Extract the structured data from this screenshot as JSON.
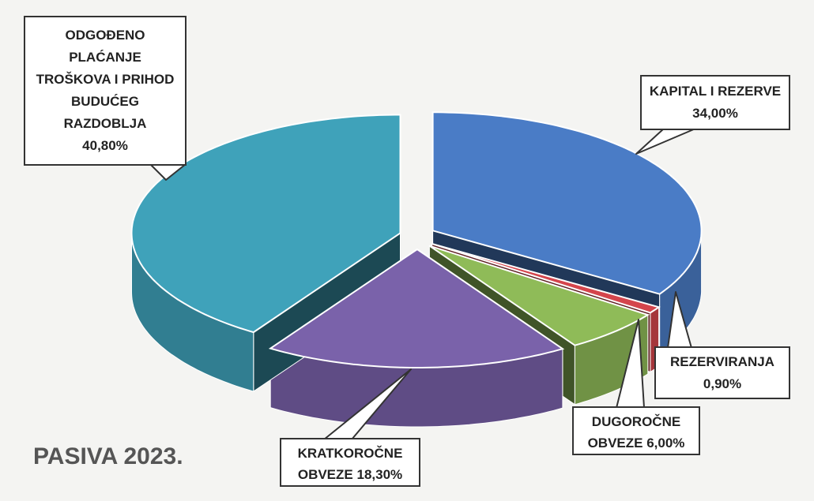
{
  "chart_data": {
    "type": "pie",
    "title": "PASIVA 2023.",
    "categories": [
      "KAPITAL I REZERVE",
      "REZERVIRANJA",
      "DUGOROČNE OBVEZE",
      "KRATKOROČNE OBVEZE",
      "ODGOĐENO PLAĆANJE TROŠKOVA I PRIHOD BUDUĆEG RAZDOBLJA"
    ],
    "values": [
      34,
      0.9,
      6,
      18.3,
      40.8
    ],
    "value_labels": [
      "34,00%",
      "0,90%",
      "6,00%",
      "18,30%",
      "40,80%"
    ],
    "colors": [
      "#4a7cc6",
      "#d4454c",
      "#8fbb58",
      "#7a62aa",
      "#3fa2ba"
    ]
  }
}
